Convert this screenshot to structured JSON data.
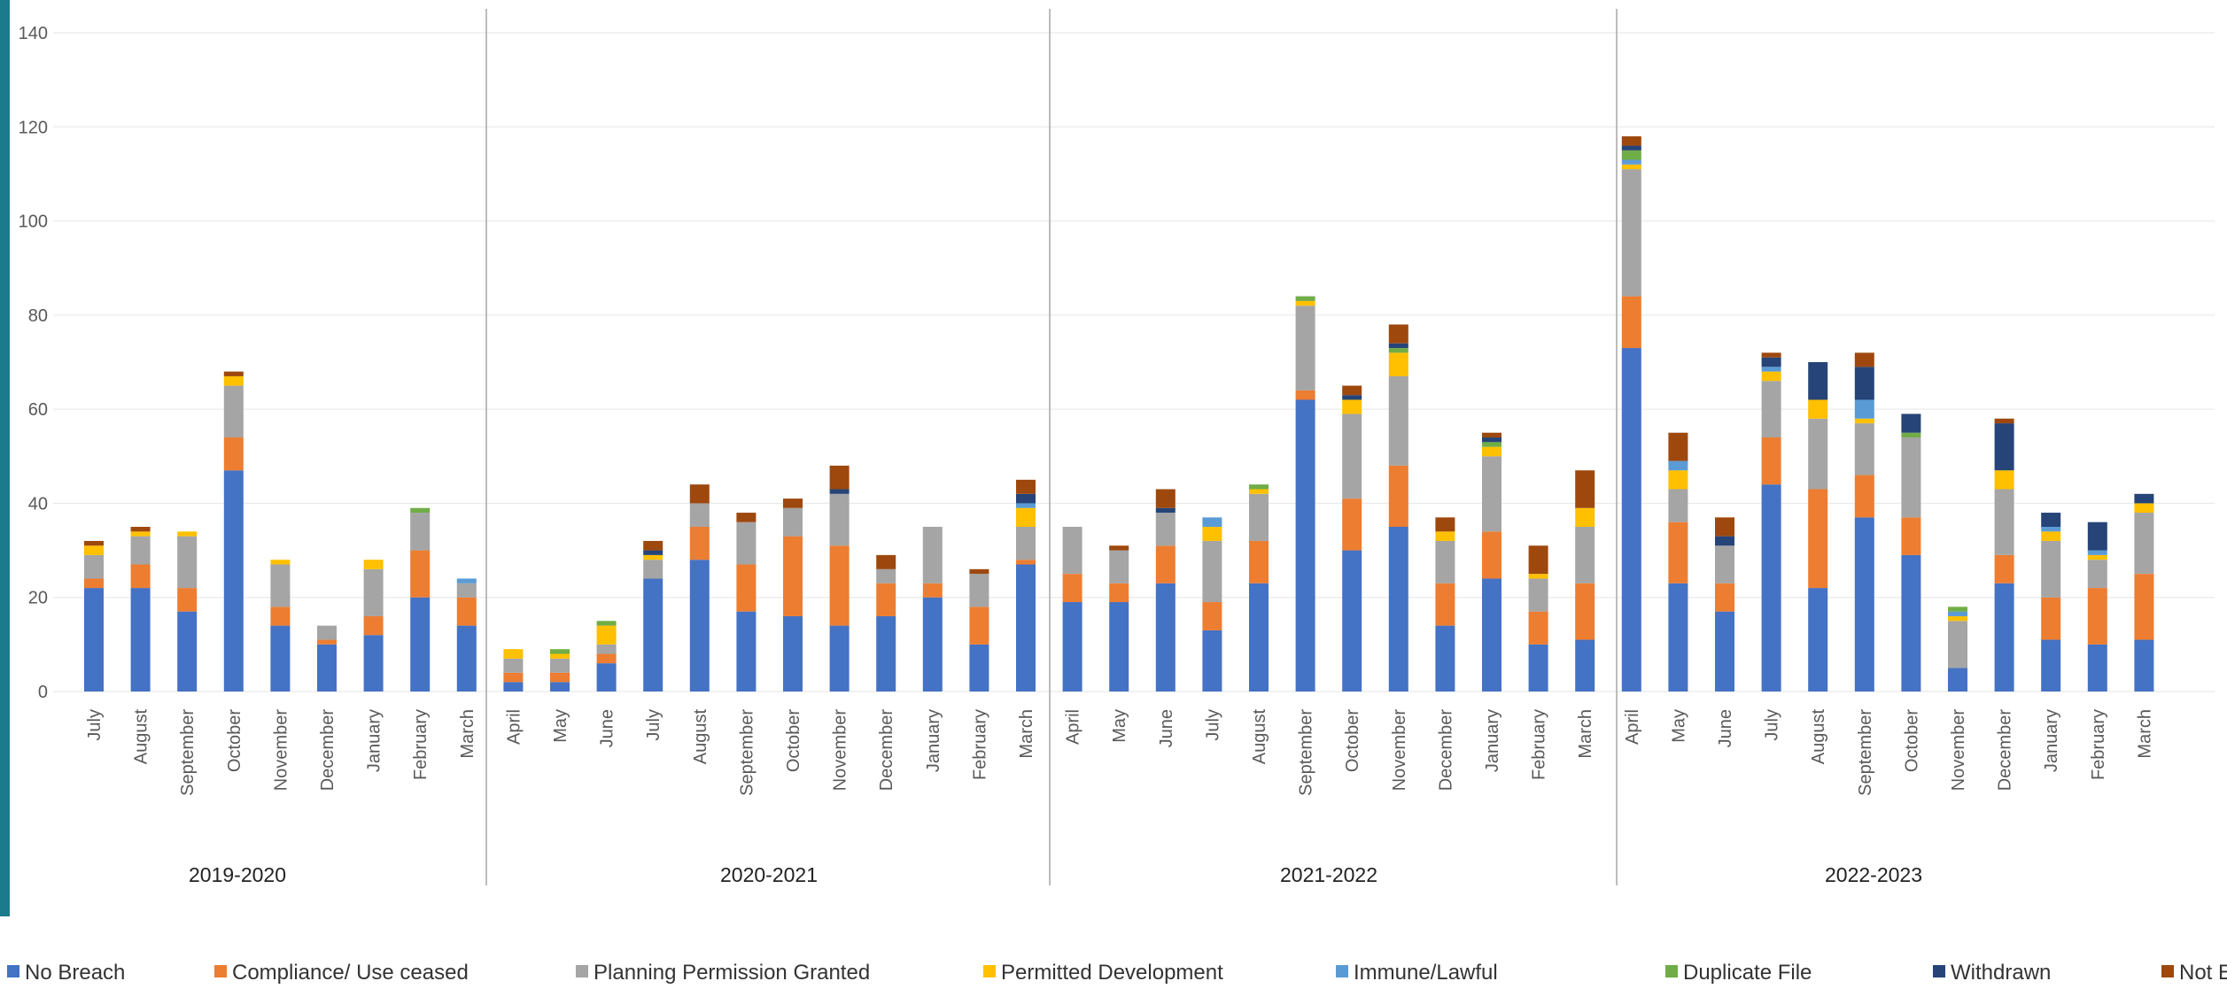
{
  "colors": {
    "accent": "#1b7a8c",
    "axis_text": "#595959",
    "divider": "#a6a6a6",
    "gridline": "#e6e6e6"
  },
  "chart_data": {
    "type": "bar",
    "stacked": true,
    "title": "",
    "xlabel": "",
    "ylabel": "",
    "ylim": [
      0,
      140
    ],
    "yticks": [
      0,
      20,
      40,
      60,
      80,
      100,
      120,
      140
    ],
    "grid": true,
    "legend_position": "bottom",
    "groups": [
      {
        "label": "2019-2020",
        "months": [
          "July",
          "August",
          "September",
          "October",
          "November",
          "December",
          "January",
          "February",
          "March"
        ]
      },
      {
        "label": "2020-2021",
        "months": [
          "April",
          "May",
          "June",
          "July",
          "August",
          "September",
          "October",
          "November",
          "December",
          "January",
          "February",
          "March"
        ]
      },
      {
        "label": "2021-2022",
        "months": [
          "April",
          "May",
          "June",
          "July",
          "August",
          "September",
          "October",
          "November",
          "December",
          "January",
          "February",
          "March"
        ]
      },
      {
        "label": "2022-2023",
        "months": [
          "April",
          "May",
          "June",
          "July",
          "August",
          "September",
          "October",
          "November",
          "December",
          "January",
          "February",
          "March"
        ]
      }
    ],
    "series": [
      {
        "name": "No Breach",
        "color": "#4472c4",
        "values": [
          22,
          22,
          17,
          47,
          14,
          10,
          12,
          20,
          14,
          2,
          2,
          6,
          24,
          28,
          17,
          16,
          14,
          16,
          20,
          10,
          27,
          19,
          19,
          23,
          13,
          23,
          62,
          30,
          35,
          14,
          24,
          10,
          11,
          73,
          23,
          17,
          44,
          22,
          37,
          29,
          5,
          23,
          11,
          10,
          11
        ]
      },
      {
        "name": "Compliance/ Use ceased",
        "color": "#ed7d31",
        "values": [
          2,
          5,
          5,
          7,
          4,
          1,
          4,
          10,
          6,
          2,
          2,
          2,
          0,
          7,
          10,
          17,
          17,
          7,
          3,
          8,
          1,
          6,
          4,
          8,
          6,
          9,
          2,
          11,
          13,
          9,
          10,
          7,
          12,
          11,
          13,
          6,
          10,
          21,
          9,
          8,
          0,
          6,
          9,
          12,
          14
        ]
      },
      {
        "name": "Planning Permission Granted",
        "color": "#a5a5a5",
        "values": [
          5,
          6,
          11,
          11,
          9,
          3,
          10,
          8,
          3,
          3,
          3,
          2,
          4,
          5,
          9,
          6,
          11,
          3,
          12,
          7,
          7,
          10,
          7,
          7,
          13,
          10,
          18,
          18,
          19,
          9,
          16,
          7,
          12,
          27,
          7,
          8,
          12,
          15,
          11,
          17,
          10,
          14,
          12,
          6,
          13
        ]
      },
      {
        "name": "Permitted Development",
        "color": "#ffc000",
        "values": [
          2,
          1,
          1,
          2,
          1,
          0,
          2,
          0,
          0,
          2,
          1,
          4,
          1,
          0,
          0,
          0,
          0,
          0,
          0,
          0,
          4,
          0,
          0,
          0,
          3,
          1,
          1,
          3,
          5,
          2,
          2,
          1,
          4,
          1,
          4,
          0,
          2,
          4,
          1,
          0,
          1,
          4,
          2,
          1,
          2
        ]
      },
      {
        "name": "Immune/Lawful",
        "color": "#5b9bd5",
        "values": [
          0,
          0,
          0,
          0,
          0,
          0,
          0,
          0,
          1,
          0,
          0,
          0,
          0,
          0,
          0,
          0,
          0,
          0,
          0,
          0,
          1,
          0,
          0,
          0,
          2,
          0,
          0,
          0,
          0,
          0,
          0,
          0,
          0,
          1,
          2,
          0,
          1,
          0,
          4,
          0,
          1,
          0,
          1,
          1,
          0
        ]
      },
      {
        "name": "Duplicate File",
        "color": "#70ad47",
        "values": [
          0,
          0,
          0,
          0,
          0,
          0,
          0,
          1,
          0,
          0,
          1,
          1,
          0,
          0,
          0,
          0,
          0,
          0,
          0,
          0,
          0,
          0,
          0,
          0,
          0,
          1,
          1,
          0,
          1,
          0,
          1,
          0,
          0,
          2,
          0,
          0,
          0,
          0,
          0,
          1,
          1,
          0,
          0,
          0,
          0
        ]
      },
      {
        "name": "Withdrawn",
        "color": "#264478",
        "values": [
          0,
          0,
          0,
          0,
          0,
          0,
          0,
          0,
          0,
          0,
          0,
          0,
          1,
          0,
          0,
          0,
          1,
          0,
          0,
          0,
          2,
          0,
          0,
          1,
          0,
          0,
          0,
          1,
          1,
          0,
          1,
          0,
          0,
          1,
          0,
          2,
          2,
          8,
          7,
          4,
          0,
          10,
          3,
          6,
          2
        ]
      },
      {
        "name": "Not Expedient",
        "color": "#9e480e",
        "values": [
          1,
          1,
          0,
          1,
          0,
          0,
          0,
          0,
          0,
          0,
          0,
          0,
          2,
          4,
          2,
          2,
          5,
          3,
          0,
          1,
          3,
          0,
          1,
          4,
          0,
          0,
          0,
          2,
          4,
          3,
          1,
          6,
          8,
          2,
          6,
          4,
          1,
          0,
          3,
          0,
          0,
          1,
          0,
          0,
          0
        ]
      }
    ]
  }
}
